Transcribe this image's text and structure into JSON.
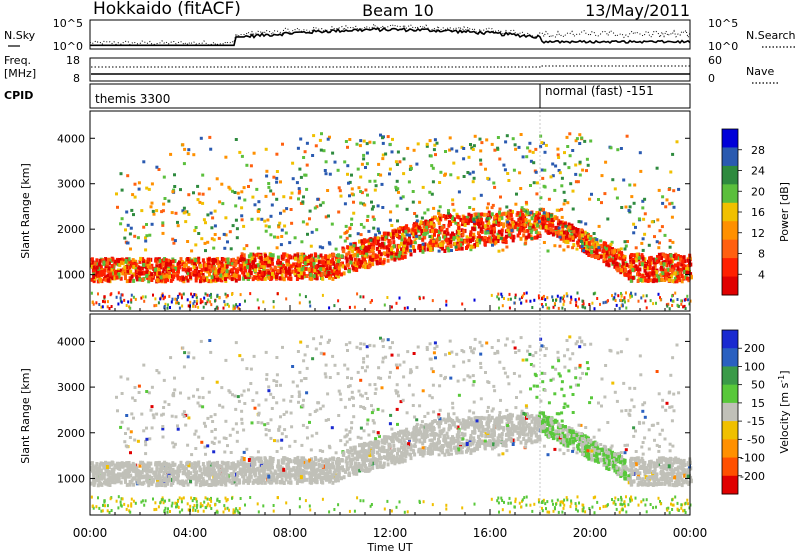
{
  "header": {
    "radar": "Hokkaido (fitACF)",
    "beam": "Beam 10",
    "date": "13/May/2011"
  },
  "top_panel": {
    "left_label": "N.Sky",
    "right_label": "N.Search",
    "left_ticks": [
      "10^5",
      "10^0"
    ],
    "right_ticks": [
      "10^5",
      "10^0"
    ]
  },
  "freq_panel": {
    "left_label_1": "Freq.",
    "left_label_2": "[MHz]",
    "left_ticks": [
      "18",
      "8"
    ],
    "right_label": "Nave",
    "right_ticks": [
      "60",
      "0"
    ]
  },
  "cpid_panel": {
    "label": "CPID",
    "segments": [
      {
        "name": "themis 3300",
        "start_hour": 0,
        "end_hour": 18
      },
      {
        "name": "normal (fast) -151",
        "start_hour": 18,
        "end_hour": 24
      }
    ]
  },
  "chart_data": [
    {
      "type": "heatmap",
      "title": "",
      "ylabel": "Slant Range [km]",
      "xlabel": "",
      "ylim": [
        200,
        4600
      ],
      "yticks": [
        "1000",
        "2000",
        "3000",
        "4000"
      ],
      "colorbar": {
        "label": "Power [dB]",
        "ticks": [
          "4",
          "8",
          "12",
          "16",
          "20",
          "24",
          "28"
        ],
        "colors": [
          "#0000d8",
          "#2a5ab0",
          "#2e8a3e",
          "#5bbf3c",
          "#f0c000",
          "#ff9000",
          "#ff6010",
          "#ff2000",
          "#e00000"
        ]
      }
    },
    {
      "type": "heatmap",
      "title": "",
      "ylabel": "Slant Range [km]",
      "xlabel": "Time UT",
      "ylim": [
        200,
        4600
      ],
      "yticks": [
        "1000",
        "2000",
        "3000",
        "4000"
      ],
      "xticks": [
        "00:00",
        "04:00",
        "08:00",
        "12:00",
        "16:00",
        "20:00",
        "00:00"
      ],
      "xlim_hours": [
        0,
        24
      ],
      "colorbar": {
        "label": "Velocity [m s",
        "label_sup": "-1",
        "label_end": "]",
        "ticks": [
          "200",
          "100",
          "50",
          "15",
          "-15",
          "-50",
          "-100",
          "-200"
        ],
        "colors": [
          "#1a2ad0",
          "#2a60c0",
          "#3a9a48",
          "#58c83a",
          "#c0c0b8",
          "#f0c000",
          "#ff9000",
          "#ff5000",
          "#e00000"
        ]
      }
    }
  ]
}
